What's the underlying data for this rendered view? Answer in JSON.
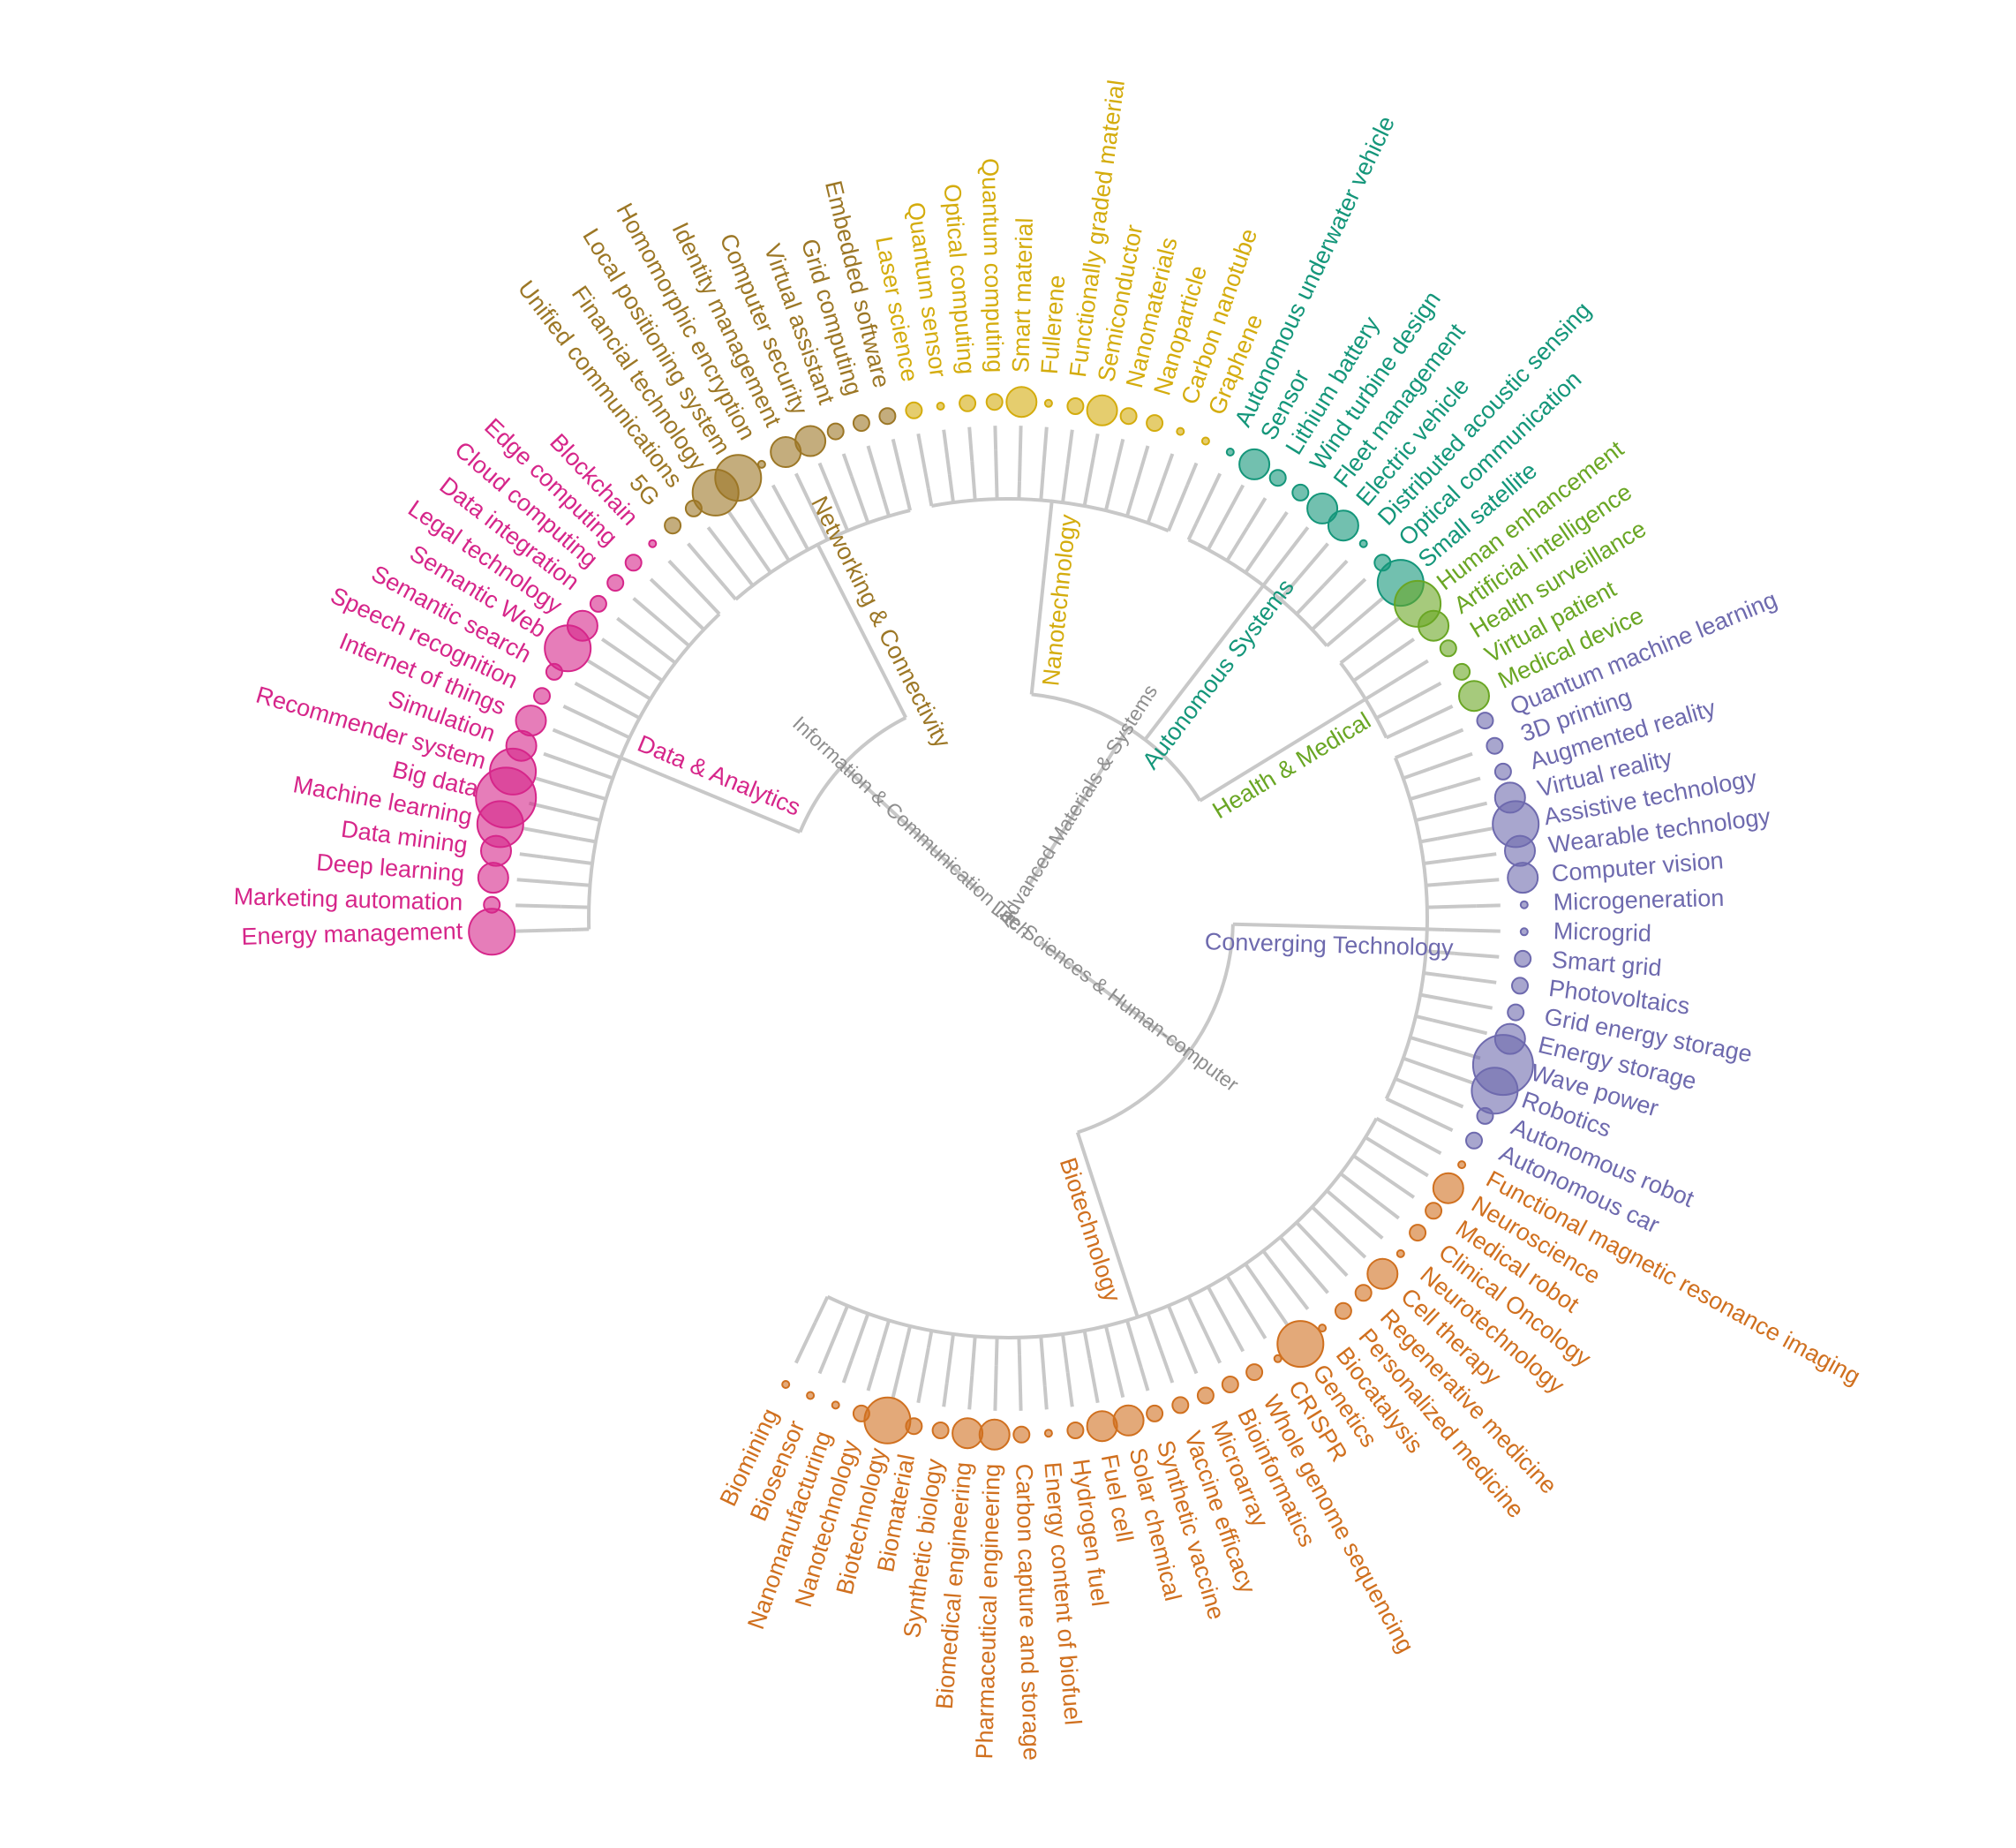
{
  "diagram": {
    "type": "radial-dendrogram",
    "roots": [
      {
        "id": "ict",
        "label": "Information & Communication Tech"
      },
      {
        "id": "life",
        "label": "Life Sciences & Human-computer"
      },
      {
        "id": "adv",
        "label": "Advanced Materials & Systems"
      }
    ],
    "clusters": [
      {
        "id": "data",
        "label": "Data & Analytics",
        "root": "ict",
        "color": "#d6268a",
        "leaves": [
          {
            "label": "Energy management",
            "size": 3
          },
          {
            "label": "Marketing automation",
            "size": 1
          },
          {
            "label": "Deep learning",
            "size": 2
          },
          {
            "label": "Data mining",
            "size": 2
          },
          {
            "label": "Machine learning",
            "size": 3
          },
          {
            "label": "Big data",
            "size": 4
          },
          {
            "label": "Recommender system",
            "size": 3
          },
          {
            "label": "Simulation",
            "size": 2
          },
          {
            "label": "Internet of things",
            "size": 2
          },
          {
            "label": "Speech recognition",
            "size": 1
          },
          {
            "label": "Semantic search",
            "size": 1
          },
          {
            "label": "Semantic Web",
            "size": 3
          },
          {
            "label": "Legal technology",
            "size": 2
          },
          {
            "label": "Data integration",
            "size": 1
          },
          {
            "label": "Cloud computing",
            "size": 1
          },
          {
            "label": "Edge computing",
            "size": 1
          },
          {
            "label": "Blockchain",
            "size": 0
          }
        ]
      },
      {
        "id": "net",
        "label": "Networking & Connectivity",
        "root": "ict",
        "color": "#9c7726",
        "leaves": [
          {
            "label": "5G",
            "size": 1
          },
          {
            "label": "Unified communications",
            "size": 1
          },
          {
            "label": "Financial technology",
            "size": 3
          },
          {
            "label": "Local positioning system",
            "size": 3
          },
          {
            "label": "Homomorphic encryption",
            "size": 0
          },
          {
            "label": "Identity management",
            "size": 2
          },
          {
            "label": "Computer security",
            "size": 2
          },
          {
            "label": "Virtual assistant",
            "size": 1
          },
          {
            "label": "Grid computing",
            "size": 1
          },
          {
            "label": "Embedded software",
            "size": 1
          }
        ]
      },
      {
        "id": "nano",
        "label": "Nanotechnology",
        "root": "adv",
        "color": "#d4ac0d",
        "leaves": [
          {
            "label": "Laser science",
            "size": 1
          },
          {
            "label": "Quantum sensor",
            "size": 0
          },
          {
            "label": "Optical computing",
            "size": 1
          },
          {
            "label": "Quantum computing",
            "size": 1
          },
          {
            "label": "Smart material",
            "size": 2
          },
          {
            "label": "Fullerene",
            "size": 0
          },
          {
            "label": "Functionally graded material",
            "size": 1
          },
          {
            "label": "Semiconductor",
            "size": 2
          },
          {
            "label": "Nanomaterials",
            "size": 1
          },
          {
            "label": "Nanoparticle",
            "size": 1
          },
          {
            "label": "Carbon nanotube",
            "size": 0
          },
          {
            "label": "Graphene",
            "size": 0
          }
        ]
      },
      {
        "id": "auto",
        "label": "Autonomous Systems",
        "root": "adv",
        "color": "#14967a",
        "leaves": [
          {
            "label": "Autonomous underwater vehicle",
            "size": 0
          },
          {
            "label": "Sensor",
            "size": 2
          },
          {
            "label": "Lithium battery",
            "size": 1
          },
          {
            "label": "Wind turbine design",
            "size": 1
          },
          {
            "label": "Fleet management",
            "size": 2
          },
          {
            "label": "Electric vehicle",
            "size": 2
          },
          {
            "label": "Distributed acoustic sensing",
            "size": 0
          },
          {
            "label": "Optical communication",
            "size": 1
          },
          {
            "label": "Small satellite",
            "size": 3
          }
        ]
      },
      {
        "id": "health",
        "label": "Health & Medical",
        "root": "adv",
        "color": "#6aa624",
        "leaves": [
          {
            "label": "Human enhancement",
            "size": 3
          },
          {
            "label": "Artificial intelligence",
            "size": 2
          },
          {
            "label": "Health surveillance",
            "size": 1
          },
          {
            "label": "Virtual patient",
            "size": 1
          },
          {
            "label": "Medical device",
            "size": 2
          }
        ]
      },
      {
        "id": "conv",
        "label": "Converging Technology",
        "root": "life",
        "color": "#6e6aae",
        "leaves": [
          {
            "label": "Quantum machine learning",
            "size": 1
          },
          {
            "label": "3D printing",
            "size": 1
          },
          {
            "label": "Augmented reality",
            "size": 1
          },
          {
            "label": "Virtual reality",
            "size": 2
          },
          {
            "label": "Assistive technology",
            "size": 3
          },
          {
            "label": "Wearable technology",
            "size": 2
          },
          {
            "label": "Computer vision",
            "size": 2
          },
          {
            "label": "Microgeneration",
            "size": 0
          },
          {
            "label": "Microgrid",
            "size": 0
          },
          {
            "label": "Smart grid",
            "size": 1
          },
          {
            "label": "Photovoltaics",
            "size": 1
          },
          {
            "label": "Grid energy storage",
            "size": 1
          },
          {
            "label": "Energy storage",
            "size": 2
          },
          {
            "label": "Wave power",
            "size": 4
          },
          {
            "label": "Robotics",
            "size": 3
          },
          {
            "label": "Autonomous robot",
            "size": 1
          },
          {
            "label": "Autonomous car",
            "size": 1
          }
        ]
      },
      {
        "id": "bio",
        "label": "Biotechnology",
        "root": "life",
        "color": "#d0701f",
        "leaves": [
          {
            "label": "Functional magnetic resonance imaging",
            "size": 0
          },
          {
            "label": "Neuroscience",
            "size": 2
          },
          {
            "label": "Medical robot",
            "size": 1
          },
          {
            "label": "Clinical Oncology",
            "size": 1
          },
          {
            "label": "Neurotechnology",
            "size": 0
          },
          {
            "label": "Cell therapy",
            "size": 2
          },
          {
            "label": "Regenerative medicine",
            "size": 1
          },
          {
            "label": "Personalized medicine",
            "size": 1
          },
          {
            "label": "Biocatalysis",
            "size": 0
          },
          {
            "label": "Genetics",
            "size": 3
          },
          {
            "label": "CRISPR",
            "size": 0
          },
          {
            "label": "Whole genome sequencing",
            "size": 1
          },
          {
            "label": "Bioinformatics",
            "size": 1
          },
          {
            "label": "Microarray",
            "size": 1
          },
          {
            "label": "Vaccine efficacy",
            "size": 1
          },
          {
            "label": "Synthetic vaccine",
            "size": 1
          },
          {
            "label": "Solar chemical",
            "size": 2
          },
          {
            "label": "Fuel cell",
            "size": 2
          },
          {
            "label": "Hydrogen fuel",
            "size": 1
          },
          {
            "label": "Energy content of biofuel",
            "size": 0
          },
          {
            "label": "Carbon capture and storage",
            "size": 1
          },
          {
            "label": "Pharmaceutical engineering",
            "size": 2
          },
          {
            "label": "Biomedical engineering",
            "size": 2
          },
          {
            "label": "Synthetic biology",
            "size": 1
          },
          {
            "label": "Biomaterial",
            "size": 1
          },
          {
            "label": "Biotechnology",
            "size": 3
          },
          {
            "label": "Nanotechnology",
            "size": 1
          },
          {
            "label": "Nanomanufacturing",
            "size": 0
          },
          {
            "label": "Biosensor",
            "size": 0
          },
          {
            "label": "Biomining",
            "size": 0
          }
        ]
      }
    ]
  }
}
